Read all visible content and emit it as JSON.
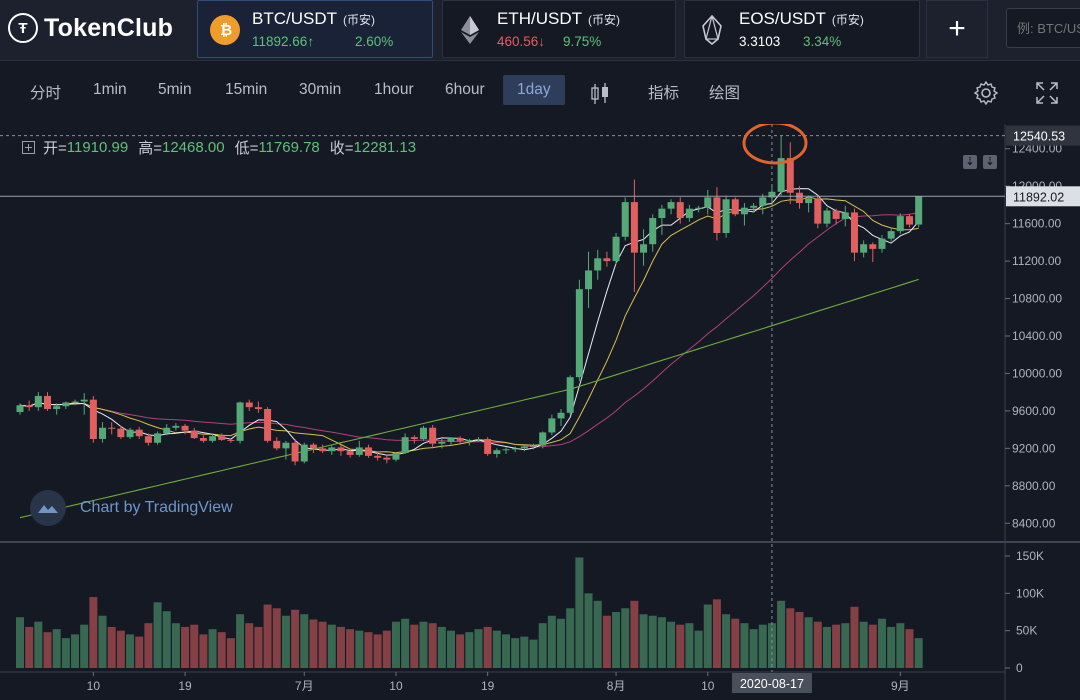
{
  "header": {
    "brand": "TokenClub",
    "brand_logo_glyph": "Ŧ",
    "tickers": [
      {
        "pair": "BTC/USDT",
        "exchange": "(币安)",
        "price": "11892.66",
        "arrow": "↑",
        "change": "2.60%",
        "price_color": "#5fc07a",
        "icon": "bitcoin-icon",
        "active": true
      },
      {
        "pair": "ETH/USDT",
        "exchange": "(币安)",
        "price": "460.56",
        "arrow": "↓",
        "change": "9.75%",
        "price_color": "#e85d5d",
        "icon": "ethereum-icon",
        "active": false
      },
      {
        "pair": "EOS/USDT",
        "exchange": "(币安)",
        "price": "3.3103",
        "arrow": "",
        "change": "3.34%",
        "price_color": "#ffffff",
        "icon": "eos-icon",
        "active": false
      }
    ],
    "add_label": "+",
    "search_placeholder": "例: BTC/USDT"
  },
  "toolbar": {
    "timeframes": [
      "分时",
      "1min",
      "5min",
      "15min",
      "30min",
      "1hour",
      "6hour",
      "1day"
    ],
    "active_timeframe": "1day",
    "indicators_label": "指标",
    "drawing_label": "绘图"
  },
  "ohlc": {
    "open_label": "开=",
    "open": "11910.99",
    "high_label": "高=",
    "high": "12468.00",
    "low_label": "低=",
    "low": "11769.78",
    "close_label": "收=",
    "close": "12281.13"
  },
  "watermark": "Chart by TradingView",
  "colors": {
    "up": "#55a979",
    "down": "#e0605f",
    "ma_short": "#e9ecf2",
    "ma_mid": "#d6c14a",
    "ma_long": "#b2417a",
    "ma_200": "#6fae3a"
  },
  "chart_data": {
    "type": "candlestick",
    "price_axis": {
      "ticks": [
        8400,
        8800,
        9200,
        9600,
        10000,
        10400,
        10800,
        11200,
        11600,
        12000,
        12400
      ],
      "tick_labels": [
        "8400.00",
        "8800.00",
        "9200.00",
        "9600.00",
        "10000.00",
        "10400.00",
        "10800.00",
        "11200.00",
        "11600.00",
        "12000.00",
        "12400.00"
      ],
      "ylim": [
        8200,
        12600
      ]
    },
    "price_markers": [
      {
        "value": 12540.53,
        "label": "12540.53",
        "style": "dashed"
      },
      {
        "value": 11892.02,
        "label": "11892.02",
        "style": "solid"
      }
    ],
    "volume_axis": {
      "tick_labels": [
        "150K",
        "100K",
        "50K",
        "0"
      ],
      "ticks": [
        150000,
        100000,
        50000,
        0
      ]
    },
    "x_tick_labels": [
      "10",
      "19",
      "7月",
      "10",
      "19",
      "8月",
      "10",
      "9月"
    ],
    "crosshair_label": "2020-08-17",
    "candles": [
      [
        9588,
        9680,
        9560,
        9660,
        68
      ],
      [
        9660,
        9710,
        9600,
        9640,
        55
      ],
      [
        9640,
        9800,
        9600,
        9760,
        62
      ],
      [
        9760,
        9800,
        9600,
        9620,
        48
      ],
      [
        9620,
        9680,
        9560,
        9650,
        52
      ],
      [
        9650,
        9700,
        9620,
        9690,
        40
      ],
      [
        9690,
        9720,
        9660,
        9700,
        45
      ],
      [
        9700,
        9790,
        9560,
        9720,
        58
      ],
      [
        9720,
        9760,
        9260,
        9300,
        95
      ],
      [
        9300,
        9480,
        9260,
        9420,
        70
      ],
      [
        9420,
        9480,
        9350,
        9410,
        55
      ],
      [
        9410,
        9440,
        9300,
        9320,
        50
      ],
      [
        9320,
        9420,
        9300,
        9400,
        45
      ],
      [
        9400,
        9430,
        9300,
        9330,
        42
      ],
      [
        9330,
        9360,
        9230,
        9260,
        60
      ],
      [
        9260,
        9380,
        9240,
        9360,
        88
      ],
      [
        9360,
        9460,
        9340,
        9420,
        76
      ],
      [
        9420,
        9470,
        9390,
        9440,
        60
      ],
      [
        9440,
        9460,
        9350,
        9390,
        55
      ],
      [
        9390,
        9420,
        9300,
        9310,
        58
      ],
      [
        9310,
        9340,
        9260,
        9280,
        45
      ],
      [
        9280,
        9360,
        9260,
        9330,
        52
      ],
      [
        9330,
        9360,
        9280,
        9290,
        48
      ],
      [
        9290,
        9300,
        9260,
        9280,
        40
      ],
      [
        9280,
        9700,
        9250,
        9690,
        72
      ],
      [
        9690,
        9720,
        9600,
        9640,
        60
      ],
      [
        9640,
        9700,
        9580,
        9620,
        55
      ],
      [
        9620,
        9640,
        9260,
        9280,
        85
      ],
      [
        9280,
        9320,
        9180,
        9200,
        80
      ],
      [
        9200,
        9280,
        9080,
        9260,
        70
      ],
      [
        9260,
        9300,
        9020,
        9060,
        78
      ],
      [
        9060,
        9260,
        9040,
        9240,
        72
      ],
      [
        9240,
        9260,
        9150,
        9200,
        65
      ],
      [
        9200,
        9240,
        9150,
        9170,
        62
      ],
      [
        9170,
        9230,
        9130,
        9210,
        58
      ],
      [
        9210,
        9240,
        9120,
        9170,
        55
      ],
      [
        9170,
        9190,
        9100,
        9130,
        52
      ],
      [
        9130,
        9280,
        9110,
        9210,
        50
      ],
      [
        9210,
        9240,
        9100,
        9120,
        48
      ],
      [
        9120,
        9160,
        9070,
        9100,
        45
      ],
      [
        9100,
        9130,
        9040,
        9080,
        50
      ],
      [
        9080,
        9160,
        9060,
        9150,
        62
      ],
      [
        9150,
        9360,
        9140,
        9320,
        66
      ],
      [
        9320,
        9340,
        9250,
        9300,
        58
      ],
      [
        9300,
        9440,
        9280,
        9420,
        62
      ],
      [
        9420,
        9450,
        9200,
        9250,
        60
      ],
      [
        9250,
        9300,
        9200,
        9270,
        55
      ],
      [
        9270,
        9320,
        9240,
        9310,
        50
      ],
      [
        9310,
        9330,
        9250,
        9280,
        45
      ],
      [
        9280,
        9300,
        9230,
        9290,
        48
      ],
      [
        9290,
        9320,
        9270,
        9300,
        52
      ],
      [
        9300,
        9320,
        9120,
        9140,
        55
      ],
      [
        9140,
        9200,
        9100,
        9180,
        50
      ],
      [
        9180,
        9210,
        9140,
        9190,
        45
      ],
      [
        9190,
        9220,
        9160,
        9200,
        40
      ],
      [
        9200,
        9240,
        9170,
        9220,
        42
      ],
      [
        9220,
        9250,
        9190,
        9230,
        38
      ],
      [
        9230,
        9380,
        9200,
        9370,
        60
      ],
      [
        9370,
        9560,
        9340,
        9520,
        70
      ],
      [
        9520,
        9620,
        9440,
        9580,
        66
      ],
      [
        9580,
        9980,
        9560,
        9960,
        80
      ],
      [
        9960,
        11000,
        9920,
        10900,
        148
      ],
      [
        10900,
        11300,
        10700,
        11100,
        100
      ],
      [
        11100,
        11320,
        11000,
        11230,
        90
      ],
      [
        11230,
        11300,
        11140,
        11200,
        70
      ],
      [
        11200,
        11500,
        11160,
        11460,
        75
      ],
      [
        11460,
        11880,
        11420,
        11830,
        80
      ],
      [
        11830,
        12070,
        10870,
        11290,
        90
      ],
      [
        11290,
        11540,
        11150,
        11380,
        72
      ],
      [
        11380,
        11700,
        11300,
        11660,
        70
      ],
      [
        11660,
        11800,
        11480,
        11760,
        68
      ],
      [
        11760,
        11860,
        11700,
        11830,
        62
      ],
      [
        11830,
        11880,
        11600,
        11660,
        58
      ],
      [
        11660,
        11800,
        11620,
        11760,
        60
      ],
      [
        11760,
        11790,
        11720,
        11770,
        50
      ],
      [
        11770,
        11960,
        11700,
        11880,
        85
      ],
      [
        11880,
        11990,
        11420,
        11500,
        92
      ],
      [
        11500,
        11900,
        11450,
        11860,
        72
      ],
      [
        11860,
        11880,
        11680,
        11700,
        66
      ],
      [
        11700,
        11820,
        11580,
        11770,
        60
      ],
      [
        11770,
        11820,
        11720,
        11790,
        52
      ],
      [
        11790,
        11920,
        11700,
        11880,
        58
      ],
      [
        11880,
        12000,
        11780,
        11940,
        60
      ],
      [
        11940,
        12540,
        11900,
        12300,
        90
      ],
      [
        12300,
        12470,
        11810,
        11930,
        80
      ],
      [
        11930,
        12000,
        11760,
        11820,
        75
      ],
      [
        11820,
        11900,
        11720,
        11870,
        68
      ],
      [
        11870,
        11890,
        11550,
        11600,
        62
      ],
      [
        11600,
        11770,
        11560,
        11740,
        55
      ],
      [
        11740,
        11760,
        11590,
        11650,
        58
      ],
      [
        11650,
        11790,
        11570,
        11720,
        60
      ],
      [
        11720,
        11760,
        11200,
        11290,
        82
      ],
      [
        11290,
        11420,
        11240,
        11380,
        62
      ],
      [
        11380,
        11400,
        11190,
        11330,
        58
      ],
      [
        11330,
        11480,
        11290,
        11440,
        66
      ],
      [
        11440,
        11560,
        11410,
        11520,
        55
      ],
      [
        11520,
        11710,
        11490,
        11680,
        60
      ],
      [
        11680,
        11700,
        11560,
        11590,
        52
      ],
      [
        11590,
        11890,
        11560,
        11890,
        40
      ]
    ],
    "ma_lines": [
      {
        "name": "MA-short",
        "period": 5
      },
      {
        "name": "MA-mid",
        "period": 10
      },
      {
        "name": "MA-long",
        "period": 30
      },
      {
        "name": "MA-200"
      }
    ]
  }
}
